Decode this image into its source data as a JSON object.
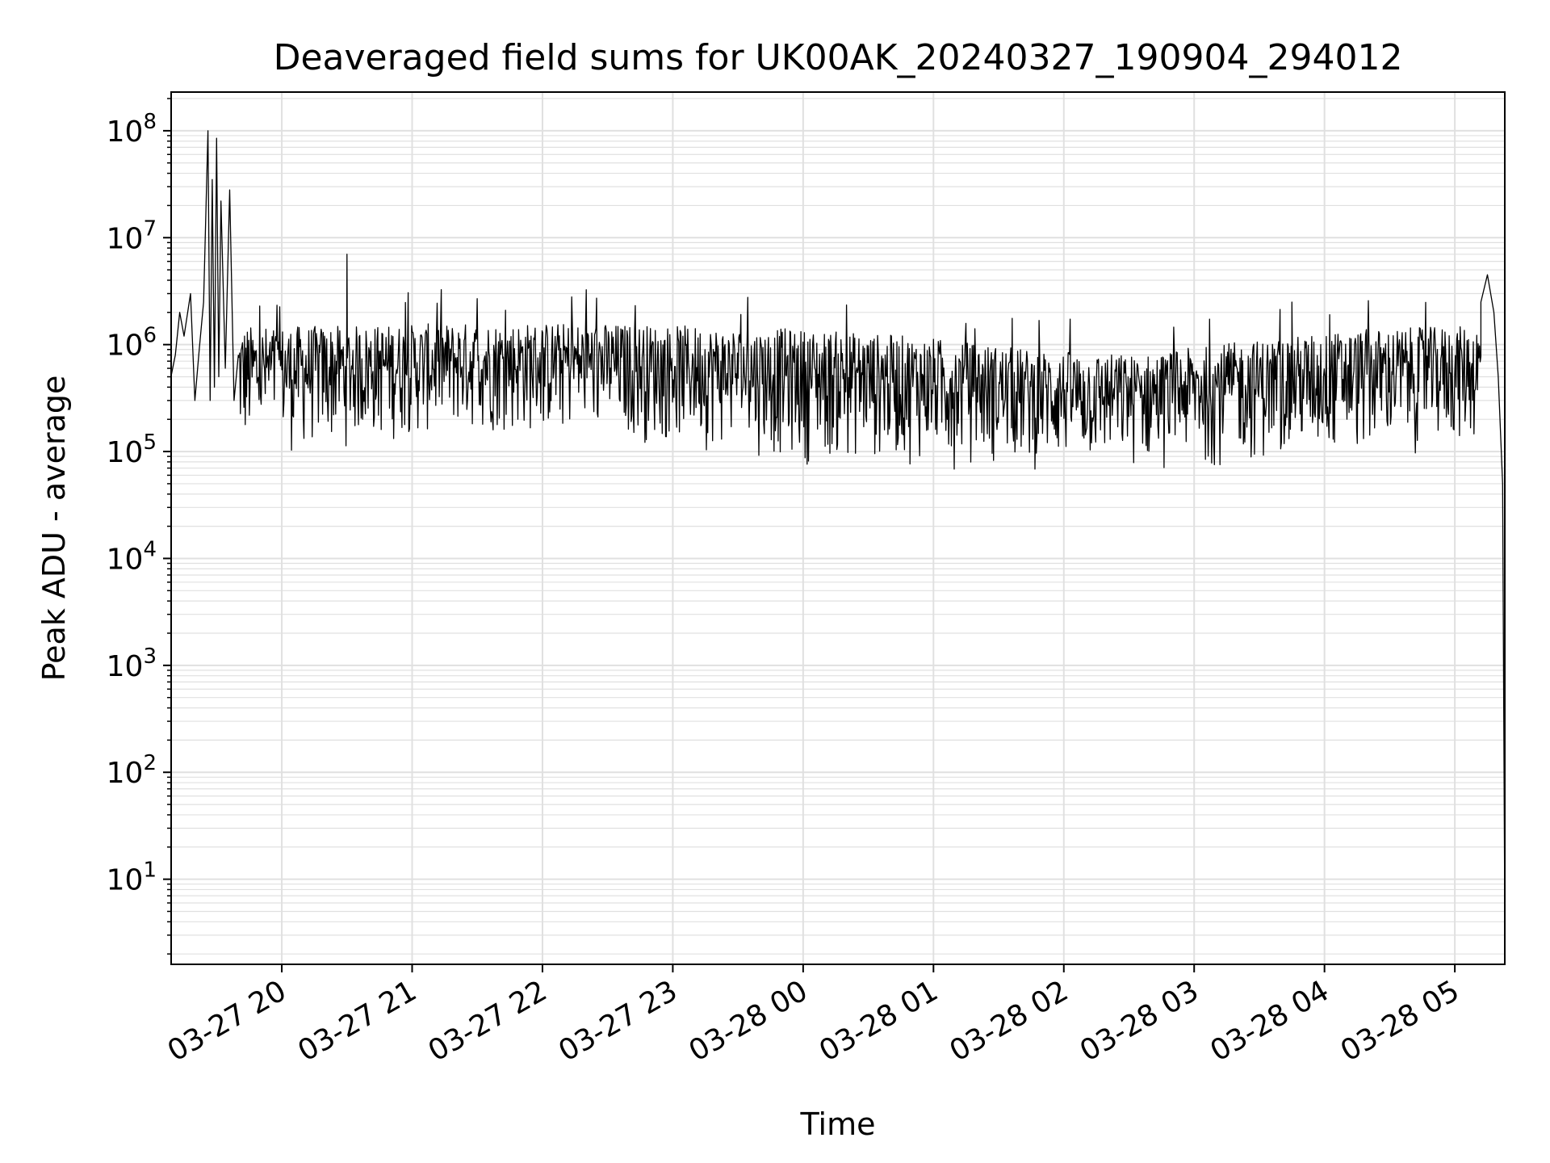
{
  "chart_data": {
    "type": "line",
    "title": "Deaveraged field sums for UK00AK_20240327_190904_294012",
    "xlabel": "Time",
    "ylabel": "Peak ADU - average",
    "yscale": "log",
    "ylim": [
      1.6,
      230000000.0
    ],
    "xlim": [
      "2024-03-27 19:09:04",
      "2024-03-28 05:23:00"
    ],
    "grid": true,
    "line_color": "#000000",
    "grid_color": "#e0e0e0",
    "x_ticks": [
      {
        "label": "03-27 20",
        "value": "2024-03-27 20:00"
      },
      {
        "label": "03-27 21",
        "value": "2024-03-27 21:00"
      },
      {
        "label": "03-27 22",
        "value": "2024-03-27 22:00"
      },
      {
        "label": "03-27 23",
        "value": "2024-03-27 23:00"
      },
      {
        "label": "03-28 00",
        "value": "2024-03-28 00:00"
      },
      {
        "label": "03-28 01",
        "value": "2024-03-28 01:00"
      },
      {
        "label": "03-28 02",
        "value": "2024-03-28 02:00"
      },
      {
        "label": "03-28 03",
        "value": "2024-03-28 03:00"
      },
      {
        "label": "03-28 04",
        "value": "2024-03-28 04:00"
      },
      {
        "label": "03-28 05",
        "value": "2024-03-28 05:00"
      }
    ],
    "y_ticks": [
      {
        "base": "10",
        "exp": "1",
        "value": 10
      },
      {
        "base": "10",
        "exp": "2",
        "value": 100
      },
      {
        "base": "10",
        "exp": "3",
        "value": 1000
      },
      {
        "base": "10",
        "exp": "4",
        "value": 10000
      },
      {
        "base": "10",
        "exp": "5",
        "value": 100000
      },
      {
        "base": "10",
        "exp": "6",
        "value": 1000000
      },
      {
        "base": "10",
        "exp": "7",
        "value": 10000000
      },
      {
        "base": "10",
        "exp": "8",
        "value": 100000000
      }
    ],
    "series": [
      {
        "x": [
          "2024-03-27 19:09",
          "2024-03-27 19:11",
          "2024-03-27 19:13",
          "2024-03-27 19:15",
          "2024-03-27 19:18",
          "2024-03-27 19:20",
          "2024-03-27 19:22",
          "2024-03-27 19:24",
          "2024-03-27 19:26",
          "2024-03-27 19:27",
          "2024-03-27 19:28",
          "2024-03-27 19:29",
          "2024-03-27 19:30",
          "2024-03-27 19:31",
          "2024-03-27 19:32",
          "2024-03-27 19:34",
          "2024-03-27 19:36",
          "2024-03-27 19:38",
          "2024-03-27 19:40",
          "2024-03-27 19:41",
          "2024-03-27 19:42",
          "2024-03-27 19:43",
          "2024-03-27 19:44",
          "2024-03-27 19:45",
          "2024-03-27 19:47",
          "2024-03-27 19:50",
          "2024-03-27 19:55",
          "2024-03-27 20:00",
          "2024-03-27 20:10",
          "2024-03-27 20:20",
          "2024-03-27 20:30",
          "2024-03-27 20:40",
          "2024-03-27 20:50",
          "2024-03-27 21:00",
          "2024-03-27 21:15",
          "2024-03-27 21:30",
          "2024-03-27 22:00",
          "2024-03-27 22:30",
          "2024-03-27 23:00",
          "2024-03-27 23:30",
          "2024-03-28 00:00",
          "2024-03-28 00:30",
          "2024-03-28 00:45",
          "2024-03-28 01:00",
          "2024-03-28 01:30",
          "2024-03-28 02:00",
          "2024-03-28 02:15",
          "2024-03-28 02:30",
          "2024-03-28 03:00",
          "2024-03-28 03:30",
          "2024-03-28 03:45",
          "2024-03-28 04:00",
          "2024-03-28 04:30",
          "2024-03-28 05:00",
          "2024-03-28 05:05",
          "2024-03-28 05:10",
          "2024-03-28 05:12",
          "2024-03-28 05:15",
          "2024-03-28 05:18",
          "2024-03-28 05:20",
          "2024-03-28 05:22",
          "2024-03-28 05:23"
        ],
        "y": [
          500000,
          800000,
          2000000,
          1200000,
          3000000,
          300000,
          900000,
          2500000,
          100000000,
          300000,
          35000000,
          400000,
          85000000,
          500000,
          22000000,
          600000,
          28000000,
          300000,
          1000000,
          400000,
          1200000,
          200000,
          900000,
          100000,
          1000000,
          80000,
          900000,
          1000000,
          900000,
          1000000,
          7000000,
          1000000,
          1100000,
          1000000,
          1100000,
          1000000,
          900000,
          1000000,
          800000,
          900000,
          700000,
          800000,
          1000000,
          700000,
          600000,
          500000,
          300000,
          500000,
          600000,
          700000,
          2500000,
          800000,
          900000,
          800000,
          1000000,
          1500000,
          2500000,
          4500000,
          2000000,
          500000,
          50000,
          4
        ]
      }
    ],
    "envelope": {
      "x_start": "2024-03-27 19:40",
      "x_end": "2024-03-28 05:12",
      "upper": [
        1500000,
        1500000,
        1600000,
        1600000,
        1500000,
        1400000,
        1200000,
        900000,
        800000,
        1100000,
        1400000,
        1500000
      ],
      "lower": [
        70000,
        100000,
        130000,
        120000,
        100000,
        70000,
        70000,
        60000,
        60000,
        70000,
        80000,
        100000
      ]
    }
  }
}
